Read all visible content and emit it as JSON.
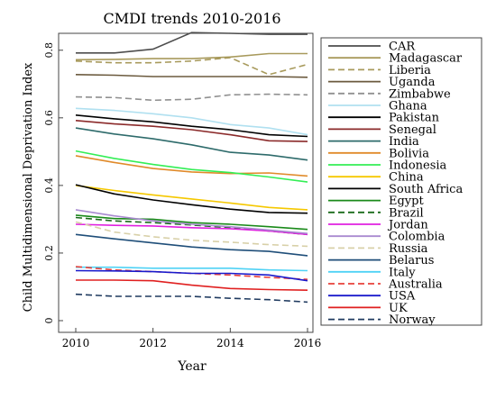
{
  "chart_data": {
    "type": "line",
    "title": "CMDI trends 2010-2016",
    "xlabel": "Year",
    "ylabel": "Child Multidimensional Deprivation Index",
    "xlim": [
      2010,
      2016
    ],
    "ylim": [
      0,
      0.85
    ],
    "xticks": [
      2010,
      2012,
      2014,
      2016
    ],
    "xtick_labels": [
      "2010",
      "2012",
      "2014",
      "2016"
    ],
    "yticks": [
      0,
      0.2,
      0.4,
      0.6,
      0.8
    ],
    "ytick_labels": [
      "0",
      "0.2",
      "0.4",
      "0.6",
      "0.8"
    ],
    "x": [
      2010,
      2011,
      2012,
      2013,
      2014,
      2015,
      2016
    ],
    "grid": false,
    "legend_position": "right",
    "series": [
      {
        "name": "CAR",
        "color": "#4d4d4d",
        "dash": "solid",
        "values": [
          0.792,
          0.792,
          0.803,
          0.852,
          0.85,
          0.847,
          0.847
        ]
      },
      {
        "name": "Madagascar",
        "color": "#a89a5c",
        "dash": "solid",
        "values": [
          0.772,
          0.773,
          0.775,
          0.775,
          0.78,
          0.79,
          0.79
        ]
      },
      {
        "name": "Liberia",
        "color": "#a89a5c",
        "dash": "dashed",
        "values": [
          0.768,
          0.763,
          0.763,
          0.768,
          0.778,
          0.728,
          0.758
        ]
      },
      {
        "name": "Uganda",
        "color": "#6b5a3e",
        "dash": "solid",
        "values": [
          0.728,
          0.726,
          0.722,
          0.722,
          0.722,
          0.722,
          0.72
        ]
      },
      {
        "name": "Zimbabwe",
        "color": "#909090",
        "dash": "dashed",
        "values": [
          0.662,
          0.66,
          0.652,
          0.655,
          0.668,
          0.67,
          0.668
        ]
      },
      {
        "name": "Ghana",
        "color": "#b0e0f0",
        "dash": "solid",
        "values": [
          0.628,
          0.622,
          0.612,
          0.6,
          0.58,
          0.57,
          0.55
        ]
      },
      {
        "name": "Pakistan",
        "color": "#000000",
        "dash": "solid",
        "values": [
          0.608,
          0.597,
          0.588,
          0.575,
          0.565,
          0.55,
          0.545
        ]
      },
      {
        "name": "Senegal",
        "color": "#8b2a2a",
        "dash": "solid",
        "values": [
          0.592,
          0.582,
          0.575,
          0.565,
          0.55,
          0.532,
          0.53
        ]
      },
      {
        "name": "India",
        "color": "#2e6b6b",
        "dash": "solid",
        "values": [
          0.57,
          0.552,
          0.538,
          0.52,
          0.498,
          0.49,
          0.475
        ]
      },
      {
        "name": "Bolivia",
        "color": "#e08a2a",
        "dash": "solid",
        "values": [
          0.488,
          0.468,
          0.45,
          0.44,
          0.435,
          0.437,
          0.428
        ]
      },
      {
        "name": "Indonesia",
        "color": "#33ee55",
        "dash": "solid",
        "values": [
          0.502,
          0.48,
          0.462,
          0.447,
          0.438,
          0.425,
          0.41
        ]
      },
      {
        "name": "China",
        "color": "#f5c800",
        "dash": "solid",
        "values": [
          0.4,
          0.385,
          0.372,
          0.36,
          0.348,
          0.335,
          0.328
        ]
      },
      {
        "name": "South Africa",
        "color": "#000000",
        "dash": "solid",
        "values": [
          0.402,
          0.375,
          0.357,
          0.343,
          0.33,
          0.32,
          0.318
        ]
      },
      {
        "name": "Egypt",
        "color": "#1a8a1a",
        "dash": "solid",
        "values": [
          0.312,
          0.302,
          0.3,
          0.29,
          0.285,
          0.278,
          0.27
        ]
      },
      {
        "name": "Brazil",
        "color": "#1a6b1a",
        "dash": "dashed",
        "values": [
          0.305,
          0.295,
          0.29,
          0.283,
          0.275,
          0.265,
          0.255
        ]
      },
      {
        "name": "Jordan",
        "color": "#e020e0",
        "dash": "solid",
        "values": [
          0.285,
          0.282,
          0.28,
          0.275,
          0.272,
          0.265,
          0.255
        ]
      },
      {
        "name": "Colombia",
        "color": "#a98ad0",
        "dash": "solid",
        "values": [
          0.328,
          0.31,
          0.295,
          0.285,
          0.278,
          0.268,
          0.258
        ]
      },
      {
        "name": "Russia",
        "color": "#d8d0a8",
        "dash": "dashed",
        "values": [
          0.292,
          0.262,
          0.248,
          0.238,
          0.232,
          0.225,
          0.22
        ]
      },
      {
        "name": "Belarus",
        "color": "#1f4e79",
        "dash": "solid",
        "values": [
          0.255,
          0.242,
          0.23,
          0.218,
          0.21,
          0.205,
          0.192
        ]
      },
      {
        "name": "Italy",
        "color": "#4fd2f5",
        "dash": "solid",
        "values": [
          0.158,
          0.158,
          0.155,
          0.155,
          0.155,
          0.15,
          0.148
        ]
      },
      {
        "name": "Australia",
        "color": "#e8403a",
        "dash": "dashed",
        "values": [
          0.16,
          0.15,
          0.145,
          0.14,
          0.135,
          0.128,
          0.122
        ]
      },
      {
        "name": "USA",
        "color": "#1a1acc",
        "dash": "solid",
        "values": [
          0.148,
          0.147,
          0.145,
          0.14,
          0.14,
          0.135,
          0.118
        ]
      },
      {
        "name": "UK",
        "color": "#e02020",
        "dash": "solid",
        "values": [
          0.12,
          0.12,
          0.118,
          0.105,
          0.095,
          0.092,
          0.09
        ]
      },
      {
        "name": "Norway",
        "color": "#1f3a5f",
        "dash": "dashed",
        "values": [
          0.078,
          0.072,
          0.072,
          0.072,
          0.066,
          0.062,
          0.055
        ]
      }
    ]
  }
}
